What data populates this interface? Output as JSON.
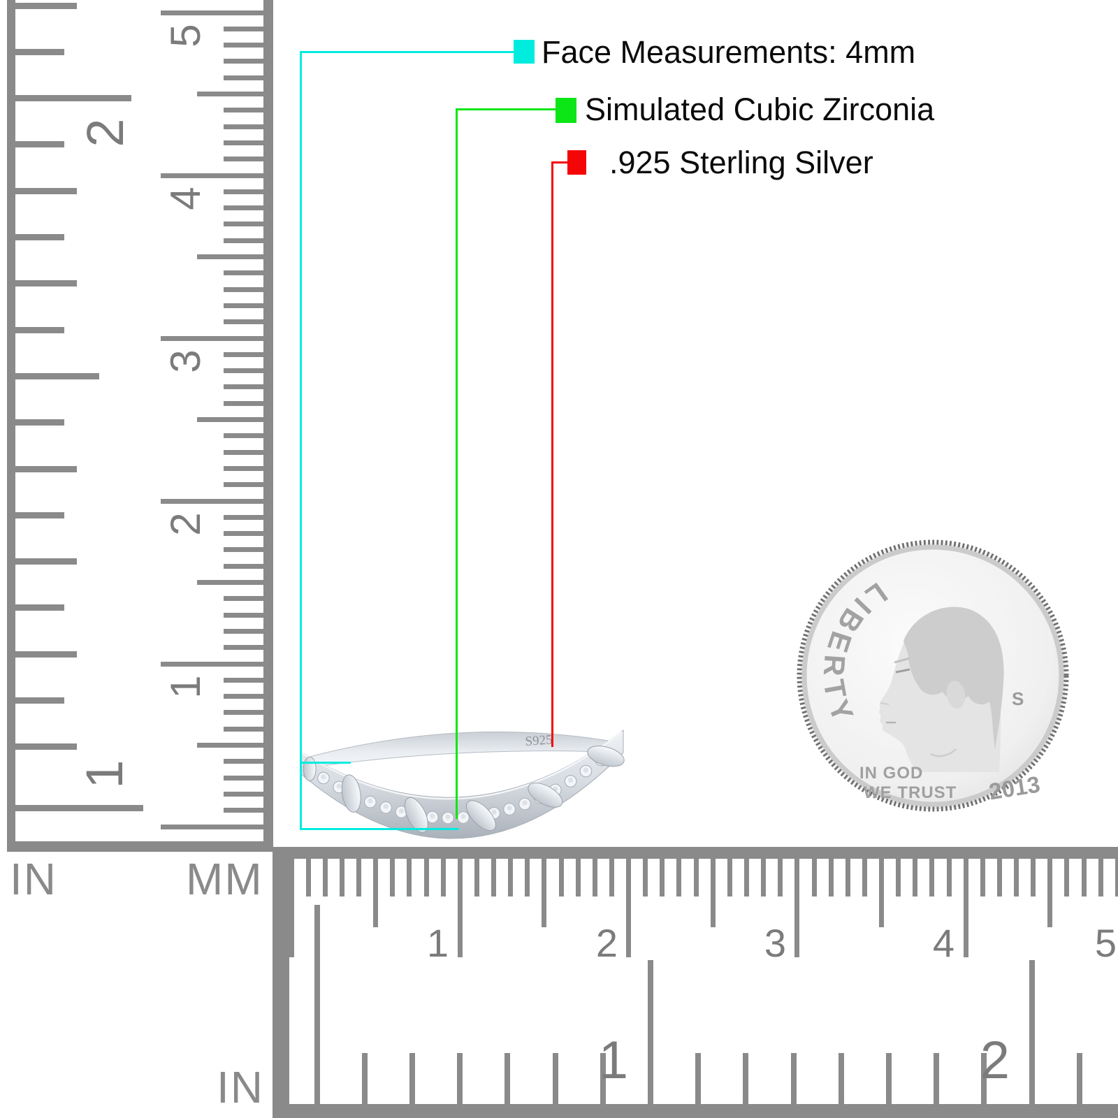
{
  "annotations": {
    "face": {
      "label": "Face Measurements: 4mm",
      "color": "#00ecdf"
    },
    "stone": {
      "label": "Simulated Cubic Zirconia",
      "color": "#0ce616"
    },
    "metal": {
      "label": ".925 Sterling Silver",
      "color": "#f40606"
    }
  },
  "ring": {
    "engraving": "S925"
  },
  "coin": {
    "legend": "LIBERTY",
    "motto_line1": "IN GOD",
    "motto_line2": "WE TRUST",
    "year": "2013",
    "mint_mark": "S"
  },
  "rulers": {
    "left_inch": {
      "unit": "IN",
      "numbers": [
        "2",
        "1"
      ]
    },
    "left_mm": {
      "unit": "MM",
      "numbers": [
        "5",
        "4",
        "3",
        "2",
        "1"
      ]
    },
    "bottom_mm": {
      "numbers": [
        "1",
        "2",
        "3",
        "4",
        "5"
      ]
    },
    "bottom_inch": {
      "unit": "IN",
      "numbers": [
        "1",
        "2"
      ]
    }
  },
  "colors": {
    "ruler": "#8a8a8a",
    "ruler_numbers": "#7b7b7b",
    "text": "#0a0a0a",
    "silver_light": "#f2f4f7",
    "silver_dark": "#c3c9d1"
  }
}
